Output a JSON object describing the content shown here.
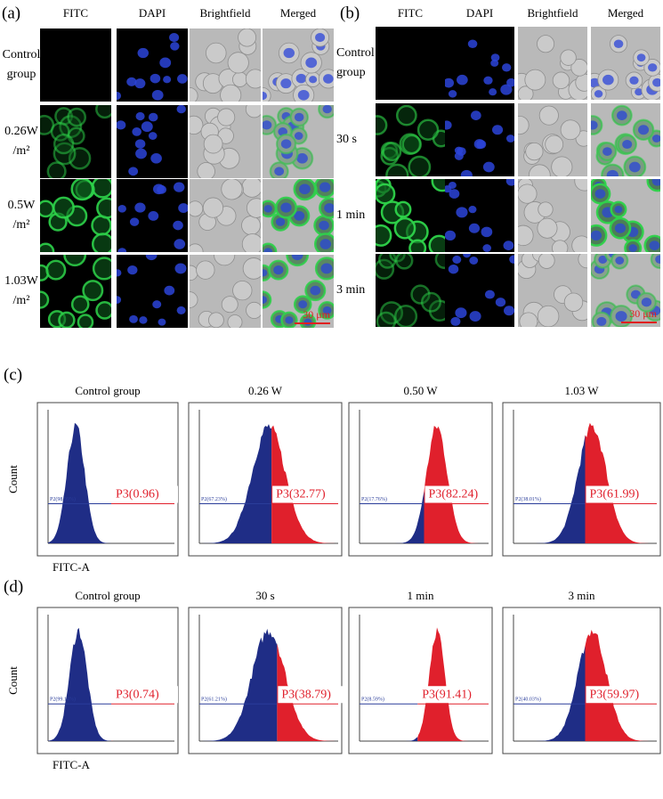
{
  "panel_a": {
    "label": "(a)",
    "columns": [
      "FITC",
      "DAPI",
      "Brightfield",
      "Merged"
    ],
    "rows": [
      [
        "Control",
        "group"
      ],
      [
        "0.26W",
        "/m²"
      ],
      [
        "0.5W",
        "/m²"
      ],
      [
        "1.03W",
        "/m²"
      ]
    ],
    "scale_bar": "30 μm"
  },
  "panel_b": {
    "label": "(b)",
    "columns": [
      "FITC",
      "DAPI",
      "Brightfield",
      "Merged"
    ],
    "rows": [
      [
        "Control",
        "group"
      ],
      [
        "30 s"
      ],
      [
        "1 min"
      ],
      [
        "3 min"
      ]
    ],
    "scale_bar": "30 μm"
  },
  "panel_c": {
    "label": "(c)",
    "x_label": "FITC-A",
    "y_label": "Count",
    "plots": [
      {
        "title": "Control group",
        "gate": "P3(0.96)",
        "p2": "P2(98.99%)"
      },
      {
        "title": "0.26 W",
        "gate": "P3(32.77)",
        "p2": "P2(67.23%)"
      },
      {
        "title": "0.50 W",
        "gate": "P3(82.24)",
        "p2": "P2(17.76%)"
      },
      {
        "title": "1.03 W",
        "gate": "P3(61.99)",
        "p2": "P2(38.01%)"
      }
    ]
  },
  "panel_d": {
    "label": "(d)",
    "x_label": "FITC-A",
    "y_label": "Count",
    "plots": [
      {
        "title": "Control group",
        "gate": "P3(0.74)",
        "p2": "P2(99.14%)"
      },
      {
        "title": "30 s",
        "gate": "P3(38.79)",
        "p2": "P2(61.21%)"
      },
      {
        "title": "1 min",
        "gate": "P3(91.41)",
        "p2": "P2(8.59%)"
      },
      {
        "title": "3 min",
        "gate": "P3(59.97)",
        "p2": "P2(40.03%)"
      }
    ]
  }
}
